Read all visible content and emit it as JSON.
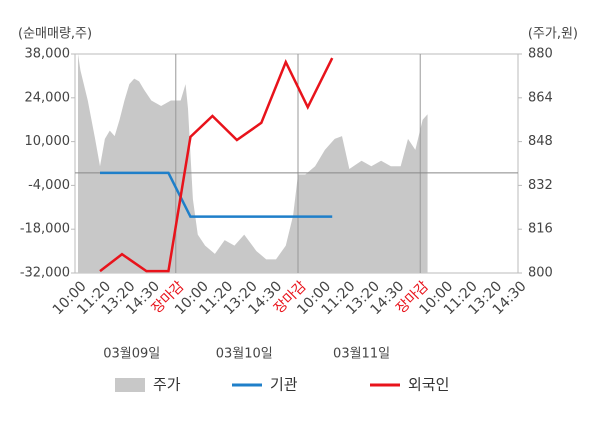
{
  "chart_data": {
    "type": "line",
    "y_axis_title": "(순매매량,주)",
    "y2_axis_title": "(주가,원)",
    "xlim": [
      0,
      18
    ],
    "xticks": [
      {
        "value": 0,
        "label": "10:00"
      },
      {
        "value": 1,
        "label": "11:20"
      },
      {
        "value": 2,
        "label": "13:20"
      },
      {
        "value": 3,
        "label": "14:30"
      },
      {
        "value": 4,
        "label": "장마감",
        "color": "#e8131b"
      },
      {
        "value": 5,
        "label": "10:00"
      },
      {
        "value": 6,
        "label": "11:20"
      },
      {
        "value": 7,
        "label": "13:20"
      },
      {
        "value": 8,
        "label": "14:30"
      },
      {
        "value": 9,
        "label": "장마감",
        "color": "#e8131b"
      },
      {
        "value": 10,
        "label": "10:00"
      },
      {
        "value": 11,
        "label": "11:20"
      },
      {
        "value": 12,
        "label": "13:20"
      },
      {
        "value": 13,
        "label": "14:30"
      },
      {
        "value": 14,
        "label": "장마감",
        "color": "#e8131b"
      },
      {
        "value": 15,
        "label": "10:00"
      },
      {
        "value": 16,
        "label": "11:20"
      },
      {
        "value": 17,
        "label": "13:20"
      },
      {
        "value": 18,
        "label": "14:30"
      }
    ],
    "dates": [
      "03월09일",
      "03월10일",
      "03월11일"
    ],
    "ylim": [
      -32000,
      38000
    ],
    "yticks": [
      {
        "value": -32000,
        "label": "-32,000"
      },
      {
        "value": -18000,
        "label": "-18,000"
      },
      {
        "value": -4000,
        "label": "-4,000"
      },
      {
        "value": 10000,
        "label": "10,000"
      },
      {
        "value": 24000,
        "label": "24,000"
      },
      {
        "value": 38000,
        "label": "38,000"
      }
    ],
    "y2lim": [
      800,
      880
    ],
    "y2ticks": [
      800,
      816,
      832,
      848,
      864,
      880
    ],
    "series": [
      {
        "name": "주가",
        "type": "area",
        "axis": "y2",
        "color": "#c8c8c8",
        "x": [
          0,
          0.1,
          0.4,
          0.7,
          0.9,
          1.1,
          1.3,
          1.5,
          1.7,
          1.9,
          2.1,
          2.3,
          2.5,
          2.7,
          3.0,
          3.4,
          3.8,
          4.2,
          4.4,
          4.5,
          4.7,
          4.9,
          5.2,
          5.6,
          6.0,
          6.4,
          6.8,
          7.3,
          7.7,
          8.1,
          8.5,
          8.8,
          9.0,
          9.3,
          9.7,
          10.1,
          10.5,
          10.8,
          11.1,
          11.6,
          12.0,
          12.4,
          12.8,
          13.2,
          13.5,
          13.8,
          14.1,
          14.3
        ],
        "values": [
          880,
          874,
          863,
          849,
          839,
          849,
          852,
          850,
          856,
          863,
          869,
          871,
          870,
          867,
          863,
          861,
          863,
          863,
          869,
          860,
          827,
          814,
          810,
          807,
          812,
          810,
          814,
          808,
          805,
          805,
          810,
          821,
          836,
          836,
          839,
          845,
          849,
          850,
          838,
          841,
          839,
          841,
          839,
          839,
          849,
          845,
          856,
          858
        ]
      },
      {
        "name": "기관",
        "type": "line",
        "color": "#1f7fc9",
        "x": [
          0.9,
          1.8,
          2.8,
          3.7,
          4.6,
          5.5,
          6.5,
          7.5,
          8.5,
          9.4,
          10.4
        ],
        "values": [
          0,
          0,
          0,
          0,
          -14000,
          -14000,
          -14000,
          -14000,
          -14000,
          -14000,
          -14000
        ]
      },
      {
        "name": "외국인",
        "type": "line",
        "color": "#e8131b",
        "x": [
          0.9,
          1.8,
          2.8,
          3.7,
          4.6,
          5.5,
          6.5,
          7.5,
          8.5,
          9.4,
          10.4
        ],
        "values": [
          -31400,
          -26000,
          -31400,
          -31400,
          11500,
          18200,
          10500,
          16000,
          35400,
          21000,
          36700
        ]
      }
    ],
    "zero_line": true,
    "grid": true
  }
}
